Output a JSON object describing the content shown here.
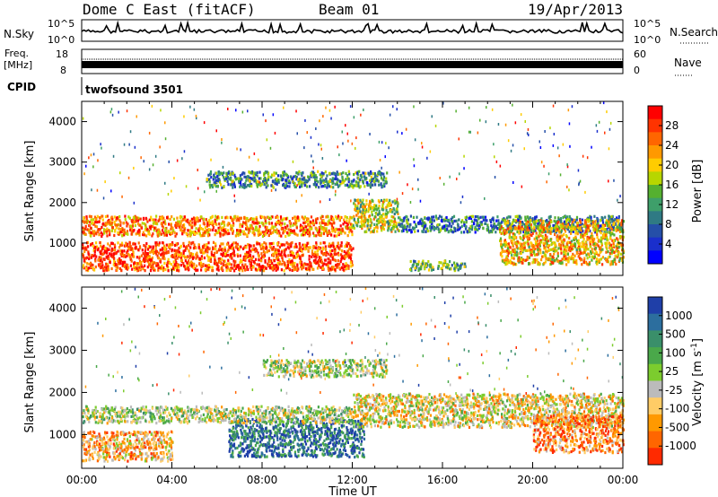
{
  "header": {
    "station": "Dome C East (fitACF)",
    "beam": "Beam 01",
    "date": "19/Apr/2013"
  },
  "strips": {
    "nsky_label": "N.Sky",
    "nsearch_label": "N.Search",
    "noise_ticks": [
      "10^5",
      "10^0"
    ],
    "freq_label": "Freq.",
    "freq_unit": "[MHz]",
    "freq_ticks": [
      "18",
      "8"
    ],
    "nave_label": "Nave",
    "nave_ticks": [
      "60",
      "0"
    ],
    "cpid_label": "CPID",
    "cpid_value": "twofsound 3501"
  },
  "chart_data": [
    {
      "type": "heatmap",
      "panel": "power",
      "ylabel": "Slant Range [km]",
      "xlabel": "",
      "yticks": [
        1000,
        2000,
        3000,
        4000
      ],
      "ylim": [
        200,
        4500
      ],
      "xlim_hours": [
        0,
        24
      ],
      "colorbar": {
        "label": "Power [dB]",
        "ticks": [
          "28",
          "24",
          "20",
          "16",
          "12",
          "8",
          "4"
        ],
        "colors": [
          "#ff0000",
          "#ff3300",
          "#ff6600",
          "#ff9900",
          "#ffcc00",
          "#b7d600",
          "#55b030",
          "#3e9f6a",
          "#2f7a84",
          "#254fa8",
          "#1a2fcc",
          "#0000ff"
        ]
      },
      "echo_regions": [
        {
          "t_start": 0.0,
          "t_end": 12.0,
          "r_min": 350,
          "r_max": 1050,
          "level": 0.85
        },
        {
          "t_start": 0.0,
          "t_end": 12.0,
          "r_min": 1200,
          "r_max": 1700,
          "level": 0.75
        },
        {
          "t_start": 12.0,
          "t_end": 14.0,
          "r_min": 1300,
          "r_max": 2100,
          "level": 0.55
        },
        {
          "t_start": 14.0,
          "t_end": 24.0,
          "r_min": 1300,
          "r_max": 1700,
          "level": 0.3
        },
        {
          "t_start": 18.5,
          "t_end": 24.0,
          "r_min": 500,
          "r_max": 1600,
          "level": 0.65
        },
        {
          "t_start": 5.5,
          "t_end": 13.5,
          "r_min": 2400,
          "r_max": 2800,
          "level": 0.35
        },
        {
          "t_start": 14.5,
          "t_end": 17.0,
          "r_min": 350,
          "r_max": 600,
          "level": 0.4
        }
      ]
    },
    {
      "type": "heatmap",
      "panel": "velocity",
      "ylabel": "Slant Range [km]",
      "xlabel": "Time UT",
      "x_tick_labels": [
        "00:00",
        "04:00",
        "08:00",
        "12:00",
        "16:00",
        "20:00",
        "00:00"
      ],
      "yticks": [
        1000,
        2000,
        3000,
        4000
      ],
      "ylim": [
        200,
        4500
      ],
      "xlim_hours": [
        0,
        24
      ],
      "colorbar": {
        "label": "Velocity [m s^-1]",
        "ticks": [
          "1000",
          "500",
          "100",
          "25",
          "-25",
          "-100",
          "-500",
          "-1000"
        ],
        "colors": [
          "#1f3fa8",
          "#2c6e9e",
          "#3a8f6a",
          "#4aa84a",
          "#7ccc2e",
          "#bbbbbb",
          "#ffcc66",
          "#ff9900",
          "#ff6600",
          "#ff2a00"
        ]
      },
      "echo_regions": [
        {
          "t_start": 0.0,
          "t_end": 4.0,
          "r_min": 400,
          "r_max": 1100,
          "level": 0.3
        },
        {
          "t_start": 6.5,
          "t_end": 12.5,
          "r_min": 500,
          "r_max": 1400,
          "level": 0.85
        },
        {
          "t_start": 0.0,
          "t_end": 12.0,
          "r_min": 1300,
          "r_max": 1700,
          "level": 0.5
        },
        {
          "t_start": 12.0,
          "t_end": 24.0,
          "r_min": 1200,
          "r_max": 2000,
          "level": 0.4
        },
        {
          "t_start": 20.0,
          "t_end": 24.0,
          "r_min": 600,
          "r_max": 1500,
          "level": 0.2
        },
        {
          "t_start": 8.0,
          "t_end": 13.5,
          "r_min": 2400,
          "r_max": 2800,
          "level": 0.5
        }
      ]
    }
  ]
}
